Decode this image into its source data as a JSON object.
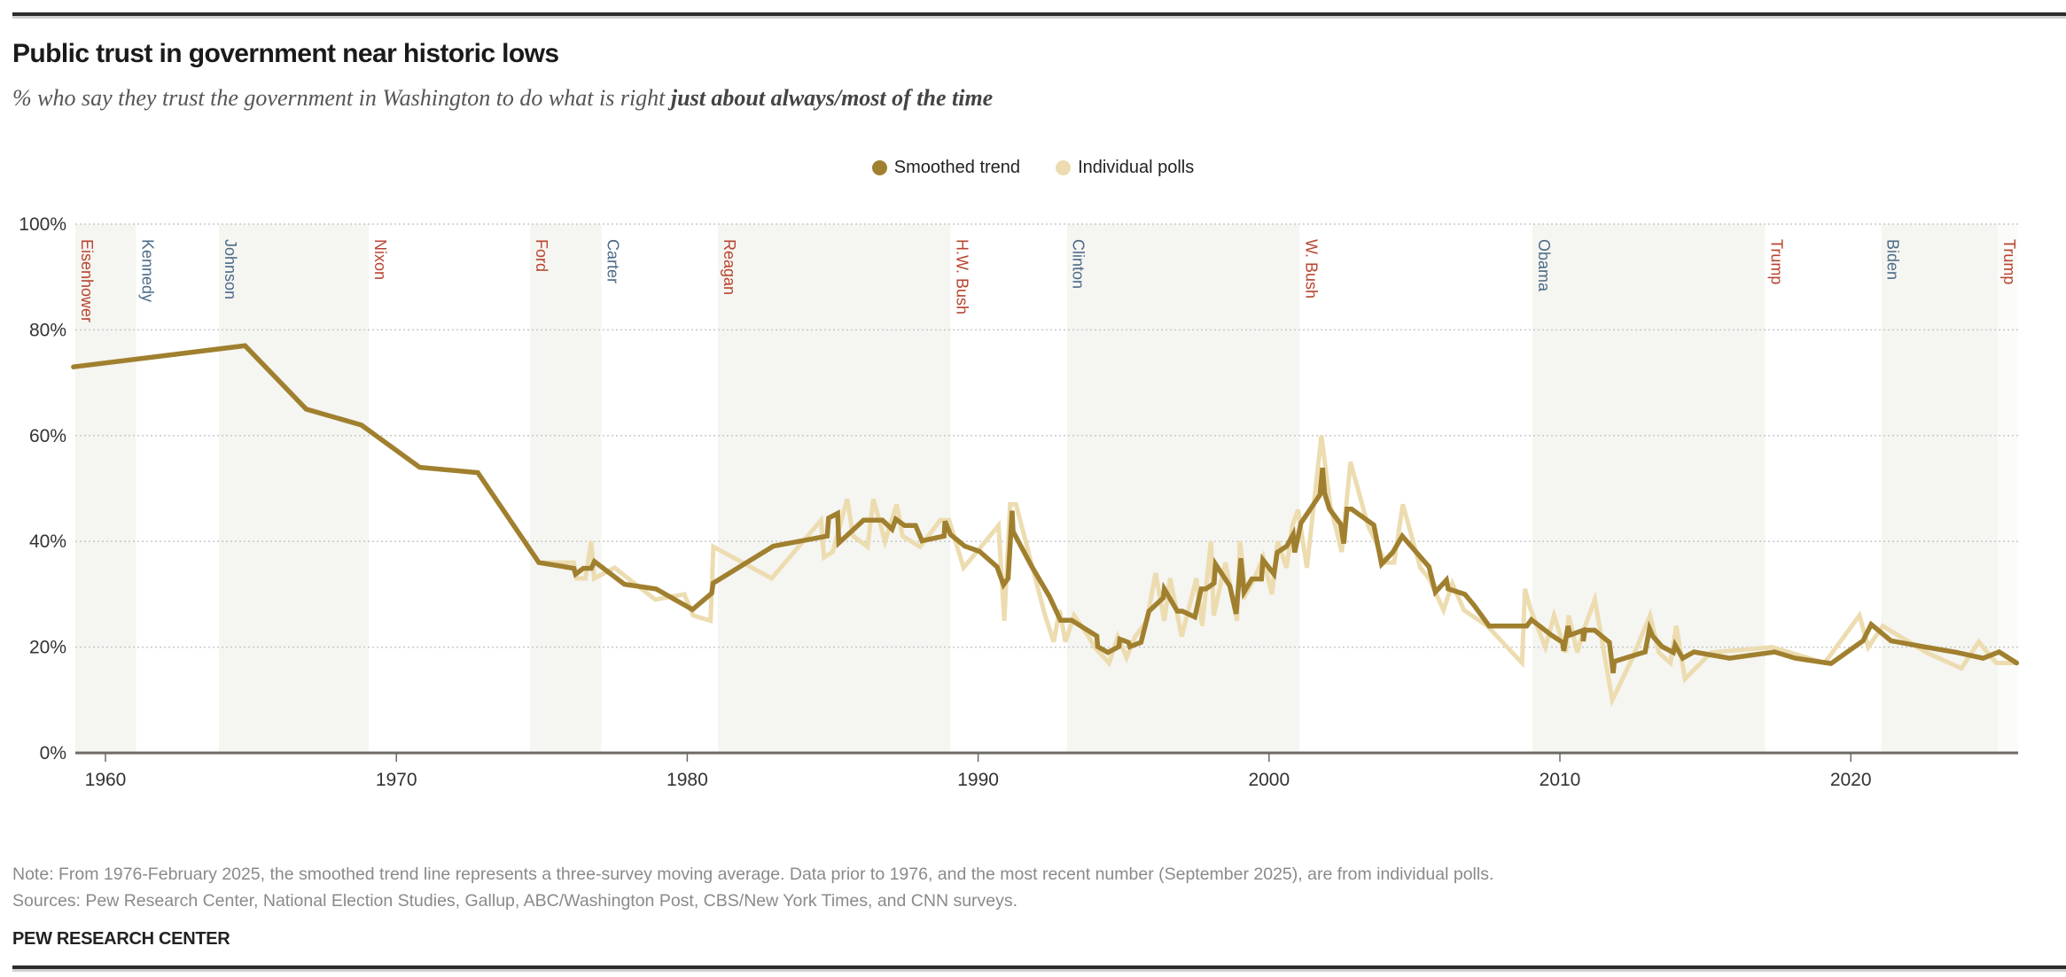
{
  "header": {
    "title": "Public trust in government near historic lows",
    "subtitle_plain": "% who say they trust the government in Washington to do what is right ",
    "subtitle_bold": "just about always/most of the time"
  },
  "legend": {
    "smoothed": "Smoothed trend",
    "polls": "Individual polls"
  },
  "colors": {
    "smoothed": "#a0802f",
    "polls": "#ecdcb0",
    "band": "#f5f5f1",
    "republican": "#b8432f",
    "democrat": "#4c6a88",
    "grid": "#c8c8c8",
    "axis": "#6e6a66"
  },
  "footer": {
    "note": "Note: From 1976-February 2025, the smoothed trend line represents a three-survey moving average. Data prior to 1976, and the most recent number (September 2025), are from individual polls.",
    "sources": "Sources: Pew Research Center, National Election Studies, Gallup, ABC/Washington Post, CBS/New York Times, and CNN surveys.",
    "brand": "PEW RESEARCH CENTER"
  },
  "chart_data": {
    "type": "line",
    "title": "Public trust in government near historic lows",
    "xlabel": "",
    "ylabel": "",
    "xlim": [
      1958.9,
      2025.8
    ],
    "ylim": [
      0,
      100
    ],
    "x_ticks": [
      1960,
      1970,
      1980,
      1990,
      2000,
      2010,
      2020
    ],
    "y_ticks": [
      0,
      20,
      40,
      60,
      80,
      100
    ],
    "y_tick_labels": [
      "0%",
      "20%",
      "40%",
      "60%",
      "80%",
      "100%"
    ],
    "grid": true,
    "legend_position": "top-center",
    "presidents": [
      {
        "name": "Eisenhower",
        "start": 1958.9,
        "end": 1961.05,
        "party": "R",
        "shaded": true
      },
      {
        "name": "Kennedy",
        "start": 1961.05,
        "end": 1963.9,
        "party": "D",
        "shaded": false
      },
      {
        "name": "Johnson",
        "start": 1963.9,
        "end": 1969.05,
        "party": "D",
        "shaded": true
      },
      {
        "name": "Nixon",
        "start": 1969.05,
        "end": 1974.6,
        "party": "R",
        "shaded": false
      },
      {
        "name": "Ford",
        "start": 1974.6,
        "end": 1977.05,
        "party": "R",
        "shaded": true
      },
      {
        "name": "Carter",
        "start": 1977.05,
        "end": 1981.05,
        "party": "D",
        "shaded": false
      },
      {
        "name": "Reagan",
        "start": 1981.05,
        "end": 1989.05,
        "party": "R",
        "shaded": true
      },
      {
        "name": "H.W. Bush",
        "start": 1989.05,
        "end": 1993.05,
        "party": "R",
        "shaded": false
      },
      {
        "name": "Clinton",
        "start": 1993.05,
        "end": 2001.05,
        "party": "D",
        "shaded": true
      },
      {
        "name": "W. Bush",
        "start": 2001.05,
        "end": 2009.05,
        "party": "R",
        "shaded": false
      },
      {
        "name": "Obama",
        "start": 2009.05,
        "end": 2017.05,
        "party": "D",
        "shaded": true
      },
      {
        "name": "Trump",
        "start": 2017.05,
        "end": 2021.05,
        "party": "R",
        "shaded": false
      },
      {
        "name": "Biden",
        "start": 2021.05,
        "end": 2025.05,
        "party": "D",
        "shaded": true
      },
      {
        "name": "Trump",
        "start": 2025.05,
        "end": 2025.8,
        "party": "R",
        "shaded": false
      }
    ],
    "series": [
      {
        "name": "Individual polls",
        "points": [
          [
            1958.9,
            73
          ],
          [
            1964.8,
            77
          ],
          [
            1966.9,
            65
          ],
          [
            1968.8,
            62
          ],
          [
            1970.8,
            54
          ],
          [
            1972.8,
            53
          ],
          [
            1974.9,
            36
          ],
          [
            1976.1,
            36
          ],
          [
            1976.2,
            33
          ],
          [
            1976.5,
            33
          ],
          [
            1976.7,
            40
          ],
          [
            1976.8,
            33
          ],
          [
            1977.5,
            35
          ],
          [
            1978.9,
            29
          ],
          [
            1979.9,
            30
          ],
          [
            1980.2,
            26
          ],
          [
            1980.8,
            25
          ],
          [
            1980.9,
            39
          ],
          [
            1982.9,
            33
          ],
          [
            1984.6,
            44
          ],
          [
            1984.7,
            37
          ],
          [
            1985.0,
            38
          ],
          [
            1985.5,
            48
          ],
          [
            1985.7,
            41
          ],
          [
            1986.2,
            39
          ],
          [
            1986.4,
            48
          ],
          [
            1986.8,
            40
          ],
          [
            1987.2,
            47
          ],
          [
            1987.4,
            41
          ],
          [
            1988.0,
            39
          ],
          [
            1988.7,
            44
          ],
          [
            1989.0,
            44
          ],
          [
            1989.5,
            35
          ],
          [
            1990.1,
            39
          ],
          [
            1990.7,
            43
          ],
          [
            1990.9,
            25
          ],
          [
            1991.1,
            47
          ],
          [
            1991.3,
            47
          ],
          [
            1992.3,
            26
          ],
          [
            1992.6,
            21
          ],
          [
            1992.8,
            27
          ],
          [
            1993.0,
            21
          ],
          [
            1993.3,
            26
          ],
          [
            1993.8,
            22
          ],
          [
            1994.0,
            20
          ],
          [
            1994.5,
            17
          ],
          [
            1994.8,
            22
          ],
          [
            1995.1,
            18
          ],
          [
            1995.4,
            22
          ],
          [
            1995.8,
            25
          ],
          [
            1996.1,
            34
          ],
          [
            1996.4,
            25
          ],
          [
            1996.6,
            33
          ],
          [
            1997.0,
            22
          ],
          [
            1997.5,
            33
          ],
          [
            1997.7,
            24
          ],
          [
            1998.0,
            40
          ],
          [
            1998.1,
            26
          ],
          [
            1998.5,
            36
          ],
          [
            1998.9,
            25
          ],
          [
            1999.0,
            40
          ],
          [
            1999.2,
            30
          ],
          [
            1999.5,
            33
          ],
          [
            1999.8,
            37
          ],
          [
            2000.1,
            30
          ],
          [
            2000.3,
            40
          ],
          [
            2000.6,
            35
          ],
          [
            2000.8,
            43
          ],
          [
            2001.0,
            46
          ],
          [
            2001.3,
            35
          ],
          [
            2001.8,
            60
          ],
          [
            2002.1,
            47
          ],
          [
            2002.5,
            38
          ],
          [
            2002.8,
            55
          ],
          [
            2003.4,
            43
          ],
          [
            2004.0,
            36
          ],
          [
            2004.3,
            36
          ],
          [
            2004.6,
            47
          ],
          [
            2005.2,
            35
          ],
          [
            2005.5,
            33
          ],
          [
            2006.0,
            27
          ],
          [
            2006.3,
            32
          ],
          [
            2006.7,
            27
          ],
          [
            2007.5,
            24
          ],
          [
            2008.7,
            17
          ],
          [
            2008.8,
            31
          ],
          [
            2009.0,
            27
          ],
          [
            2009.5,
            20
          ],
          [
            2009.8,
            26
          ],
          [
            2010.2,
            19
          ],
          [
            2010.3,
            26
          ],
          [
            2010.6,
            19
          ],
          [
            2010.8,
            23
          ],
          [
            2011.2,
            29
          ],
          [
            2011.8,
            10
          ],
          [
            2012.5,
            18
          ],
          [
            2013.1,
            26
          ],
          [
            2013.4,
            19
          ],
          [
            2013.8,
            17
          ],
          [
            2014.0,
            24
          ],
          [
            2014.3,
            14
          ],
          [
            2015.2,
            19
          ],
          [
            2017.3,
            20
          ],
          [
            2019.1,
            17
          ],
          [
            2020.3,
            26
          ],
          [
            2020.6,
            20
          ],
          [
            2021.1,
            24
          ],
          [
            2022.6,
            19
          ],
          [
            2023.8,
            16
          ],
          [
            2024.4,
            21
          ],
          [
            2025.0,
            17
          ],
          [
            2025.7,
            17
          ]
        ]
      },
      {
        "name": "Smoothed trend",
        "points": [
          [
            1958.9,
            73
          ],
          [
            1964.8,
            77
          ],
          [
            1966.9,
            65
          ],
          [
            1968.8,
            62
          ],
          [
            1970.8,
            54
          ],
          [
            1972.8,
            53
          ],
          [
            1974.9,
            36
          ],
          [
            1976.1,
            34.9
          ],
          [
            1976.16,
            33.8
          ],
          [
            1976.43,
            34.9
          ],
          [
            1976.7,
            34.9
          ],
          [
            1976.81,
            36.2
          ],
          [
            1977.84,
            31.9
          ],
          [
            1978.93,
            31
          ],
          [
            1980.18,
            27.1
          ],
          [
            1980.84,
            30.2
          ],
          [
            1980.89,
            32.1
          ],
          [
            1982.96,
            39.1
          ],
          [
            1984.81,
            41
          ],
          [
            1984.86,
            44.4
          ],
          [
            1985.17,
            45.3
          ],
          [
            1985.21,
            39.7
          ],
          [
            1986.06,
            44
          ],
          [
            1986.71,
            44
          ],
          [
            1987.04,
            42.3
          ],
          [
            1987.17,
            44.2
          ],
          [
            1987.47,
            43
          ],
          [
            1987.85,
            43
          ],
          [
            1988.07,
            40.1
          ],
          [
            1988.83,
            41
          ],
          [
            1988.86,
            43.8
          ],
          [
            1989.05,
            41.3
          ],
          [
            1989.54,
            39.1
          ],
          [
            1990.05,
            38.1
          ],
          [
            1990.65,
            35.2
          ],
          [
            1990.87,
            31.8
          ],
          [
            1991.03,
            33
          ],
          [
            1991.17,
            45.8
          ],
          [
            1991.2,
            41.9
          ],
          [
            1991.85,
            35.2
          ],
          [
            1992.45,
            29.6
          ],
          [
            1992.83,
            25.1
          ],
          [
            1993.21,
            25.1
          ],
          [
            1994.08,
            22.1
          ],
          [
            1994.11,
            20.1
          ],
          [
            1994.46,
            19
          ],
          [
            1994.84,
            20.1
          ],
          [
            1994.87,
            21.5
          ],
          [
            1995.17,
            20.9
          ],
          [
            1995.22,
            20.1
          ],
          [
            1995.6,
            20.9
          ],
          [
            1995.87,
            26.8
          ],
          [
            1996.36,
            29.3
          ],
          [
            1996.4,
            31
          ],
          [
            1996.85,
            26.8
          ],
          [
            1997.02,
            26.8
          ],
          [
            1997.45,
            25.7
          ],
          [
            1997.67,
            31
          ],
          [
            1997.83,
            31
          ],
          [
            1998.11,
            32.1
          ],
          [
            1998.16,
            35.7
          ],
          [
            1998.65,
            31.6
          ],
          [
            1998.87,
            26.3
          ],
          [
            1999.03,
            36.8
          ],
          [
            1999.14,
            30.4
          ],
          [
            1999.41,
            32.9
          ],
          [
            1999.74,
            32.9
          ],
          [
            1999.79,
            36.5
          ],
          [
            2000.17,
            33.8
          ],
          [
            2000.28,
            37.9
          ],
          [
            2000.61,
            39.1
          ],
          [
            2000.83,
            41.3
          ],
          [
            2000.88,
            37.9
          ],
          [
            2001.1,
            43.5
          ],
          [
            2001.42,
            46.1
          ],
          [
            2001.75,
            48.8
          ],
          [
            2001.84,
            53.9
          ],
          [
            2001.91,
            49.1
          ],
          [
            2002.08,
            46.1
          ],
          [
            2002.46,
            43.3
          ],
          [
            2002.57,
            39.6
          ],
          [
            2002.68,
            46.1
          ],
          [
            2002.84,
            46.1
          ],
          [
            2003.6,
            43.1
          ],
          [
            2003.87,
            35.7
          ],
          [
            2004.25,
            37.9
          ],
          [
            2004.58,
            41
          ],
          [
            2005.5,
            35.2
          ],
          [
            2005.72,
            30.4
          ],
          [
            2006.1,
            32.7
          ],
          [
            2006.16,
            31
          ],
          [
            2006.73,
            30
          ],
          [
            2007.05,
            27.9
          ],
          [
            2007.57,
            24
          ],
          [
            2008.86,
            24
          ],
          [
            2009.02,
            25.2
          ],
          [
            2009.7,
            22.3
          ],
          [
            2010.09,
            20.9
          ],
          [
            2010.13,
            19.3
          ],
          [
            2010.28,
            24
          ],
          [
            2010.35,
            22.3
          ],
          [
            2010.8,
            23.2
          ],
          [
            2010.8,
            21.1
          ],
          [
            2010.86,
            23.2
          ],
          [
            2011.19,
            23.2
          ],
          [
            2011.7,
            20.9
          ],
          [
            2011.83,
            15.1
          ],
          [
            2011.87,
            17.3
          ],
          [
            2012.93,
            19.1
          ],
          [
            2013.08,
            23.5
          ],
          [
            2013.19,
            22.1
          ],
          [
            2013.51,
            20.1
          ],
          [
            2013.9,
            19
          ],
          [
            2013.96,
            20.4
          ],
          [
            2014.22,
            17.9
          ],
          [
            2014.61,
            19.1
          ],
          [
            2015.83,
            17.9
          ],
          [
            2017.38,
            19.1
          ],
          [
            2018.09,
            17.9
          ],
          [
            2019.32,
            16.9
          ],
          [
            2020.42,
            21.2
          ],
          [
            2020.7,
            24.3
          ],
          [
            2021.38,
            21.2
          ],
          [
            2022.48,
            20.1
          ],
          [
            2023.64,
            19
          ],
          [
            2024.55,
            17.9
          ],
          [
            2025.1,
            19.1
          ],
          [
            2025.7,
            17
          ]
        ]
      }
    ]
  }
}
